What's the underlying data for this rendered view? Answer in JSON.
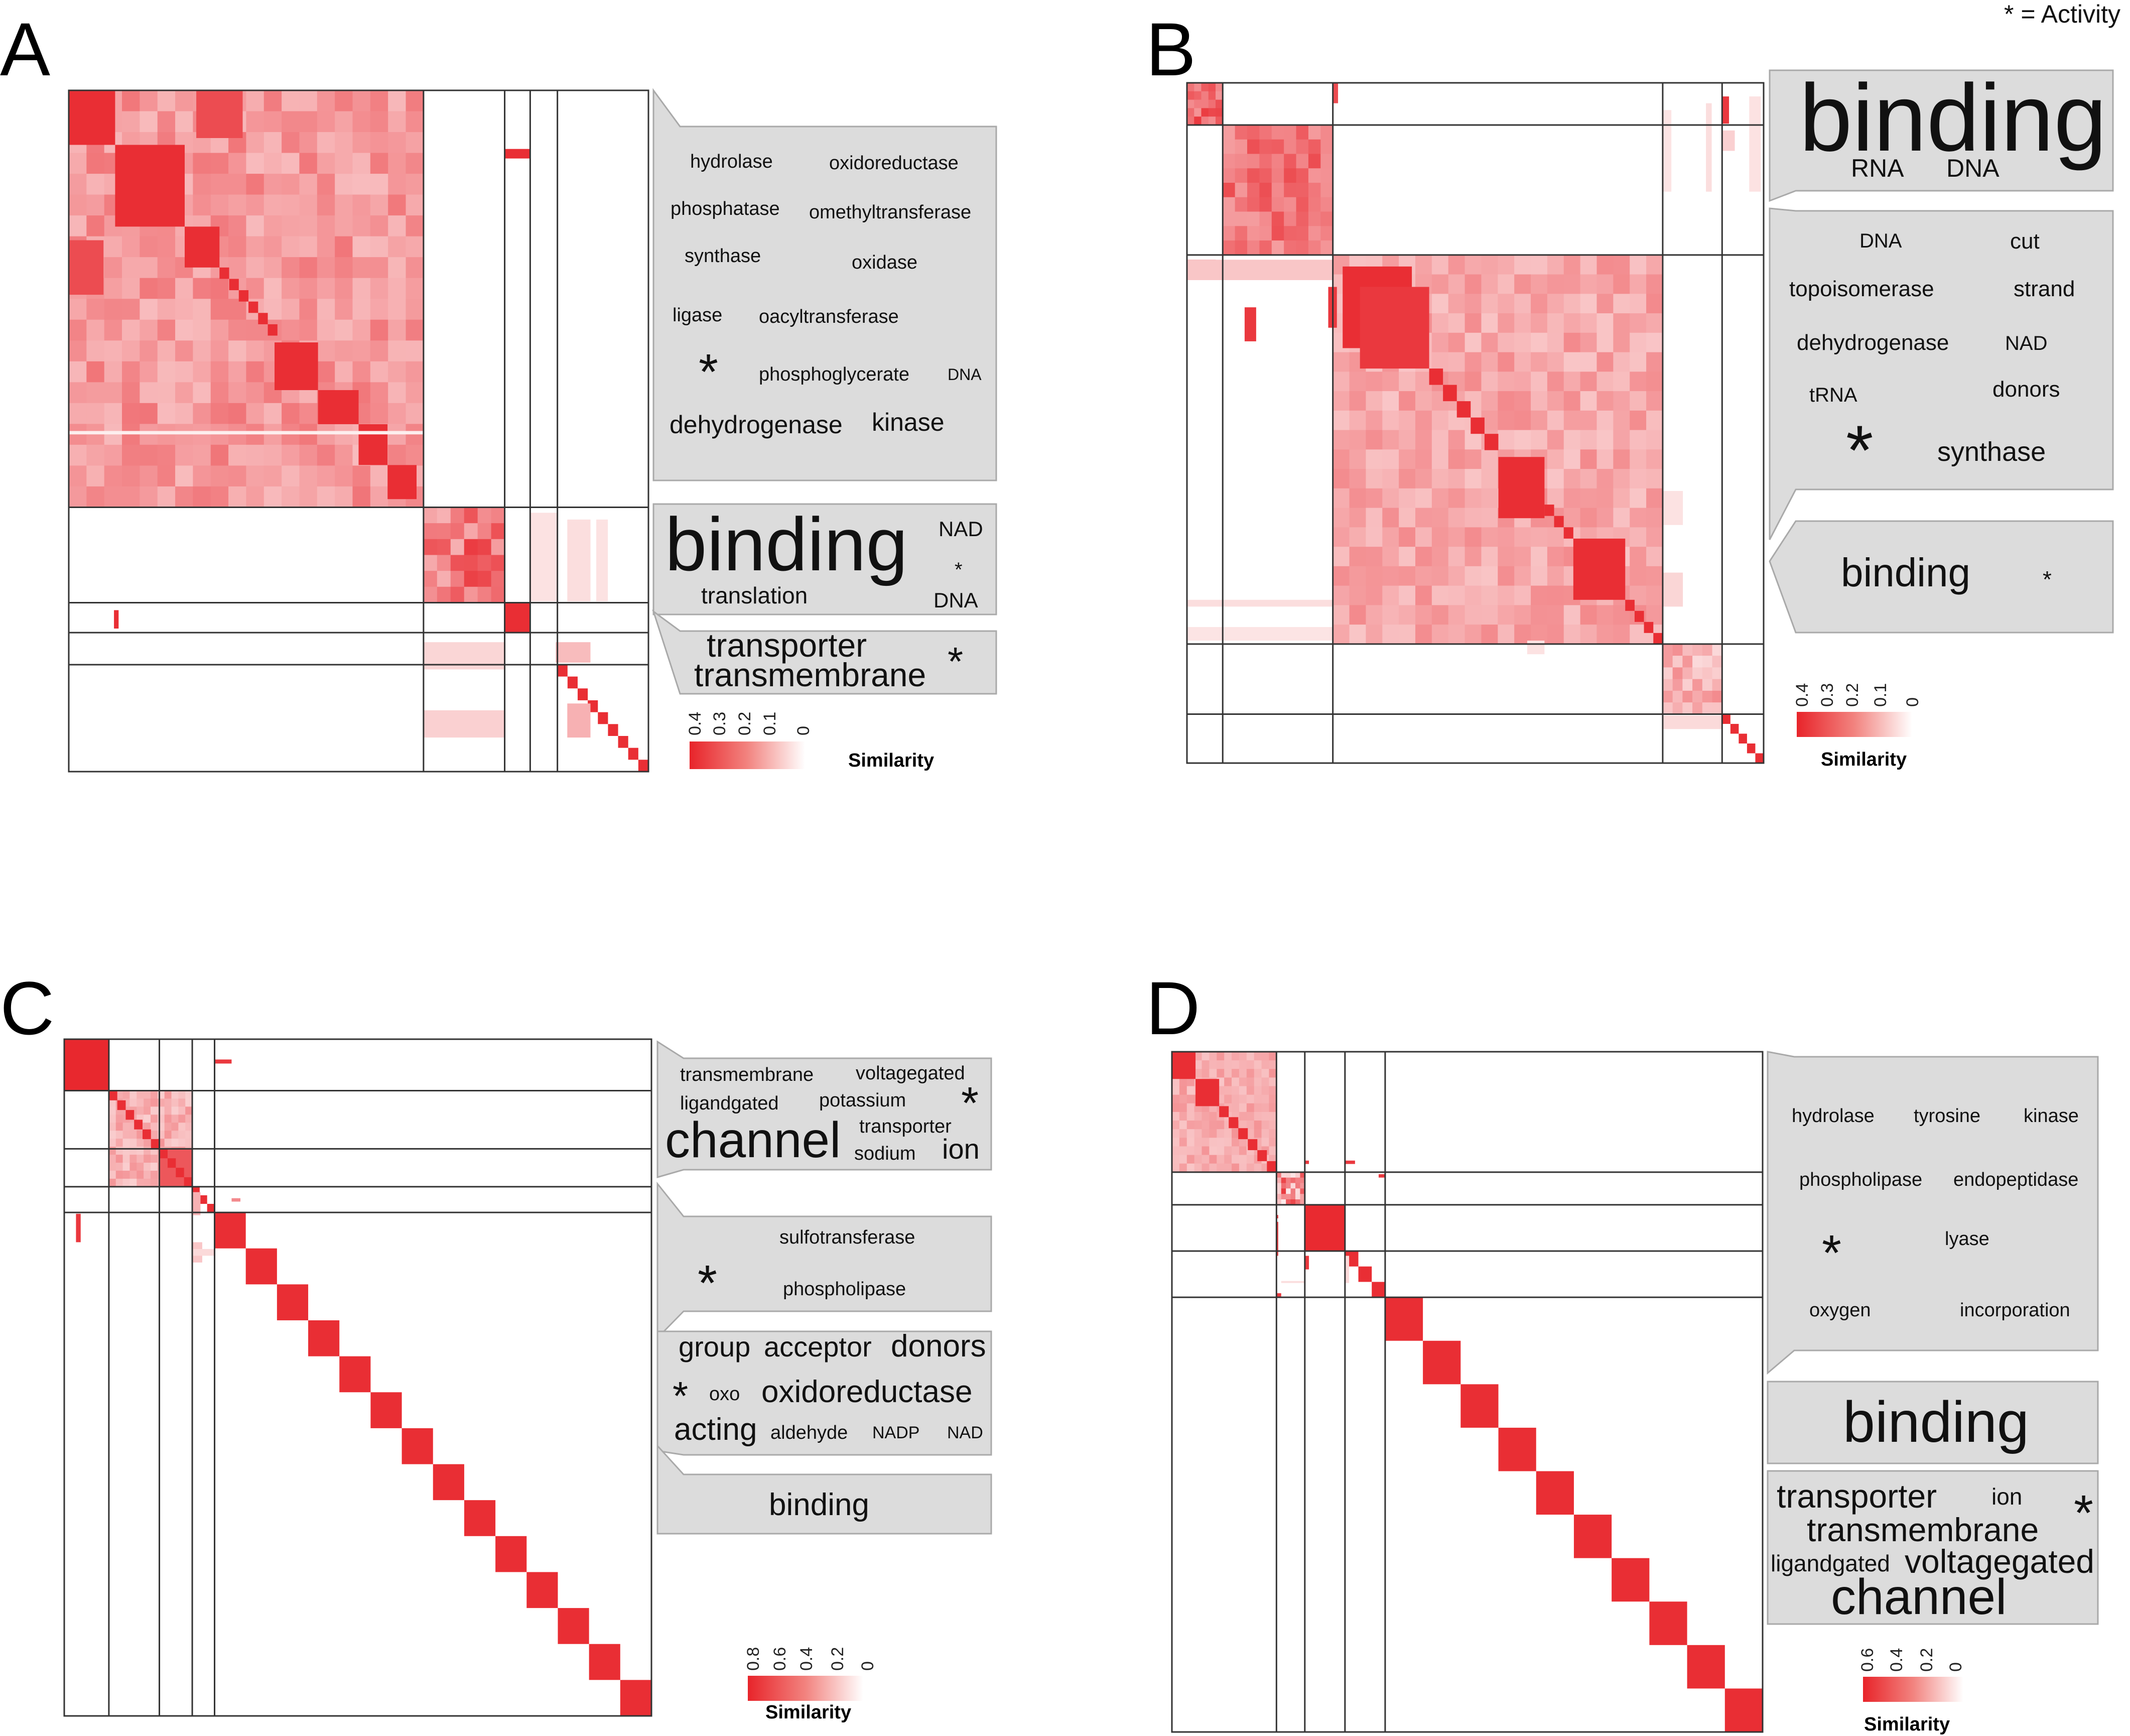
{
  "activity_note": "* = Activity",
  "legend_label": "Similarity",
  "colors": {
    "heat_high": "#e8242a",
    "heat_low": "#fdeeee",
    "callout": "#dcdcdc",
    "grid": "#333333"
  },
  "panels": {
    "A": {
      "letter": "A",
      "legend_ticks": [
        "0.4",
        "0.3",
        "0.2",
        "0.1",
        "0"
      ],
      "groups": [
        {
          "words": [
            "hydrolase",
            "oxidoreductase",
            "phosphatase",
            "omethyltransferase",
            "synthase",
            "oxidase",
            "ligase",
            "oacyltransferase",
            "*",
            "phosphoglycerate",
            "DNA",
            "dehydrogenase",
            "kinase"
          ]
        },
        {
          "words": [
            "binding",
            "NAD",
            "*",
            "translation",
            "DNA"
          ]
        },
        {
          "words": [
            "transporter",
            "*",
            "transmembrane"
          ]
        }
      ]
    },
    "B": {
      "letter": "B",
      "legend_ticks": [
        "0.4",
        "0.3",
        "0.2",
        "0.1",
        "0"
      ],
      "groups": [
        {
          "words": [
            "binding",
            "RNA",
            "DNA"
          ]
        },
        {
          "words": [
            "DNA",
            "cut",
            "topoisomerase",
            "strand",
            "dehydrogenase",
            "NAD",
            "tRNA",
            "donors",
            "*",
            "synthase"
          ]
        },
        {
          "words": [
            "binding",
            "*"
          ]
        }
      ]
    },
    "C": {
      "letter": "C",
      "legend_ticks": [
        "0.8",
        "0.6",
        "0.4",
        "0.2",
        "0"
      ],
      "groups": [
        {
          "words": [
            "transmembrane",
            "voltagegated",
            "ligandgated",
            "potassium",
            "*",
            "channel",
            "transporter",
            "sodium",
            "ion"
          ]
        },
        {
          "words": [
            "sulfotransferase",
            "*",
            "phospholipase"
          ]
        },
        {
          "words": [
            "group",
            "acceptor",
            "donors",
            "*",
            "oxo",
            "oxidoreductase",
            "acting",
            "aldehyde",
            "NADP",
            "NAD"
          ]
        },
        {
          "words": [
            "binding"
          ]
        }
      ]
    },
    "D": {
      "letter": "D",
      "legend_ticks": [
        "0.6",
        "0.4",
        "0.2",
        "0"
      ],
      "groups": [
        {
          "words": [
            "hydrolase",
            "tyrosine",
            "kinase",
            "phospholipase",
            "endopeptidase",
            "*",
            "lyase",
            "oxygen",
            "incorporation"
          ]
        },
        {
          "words": [
            "binding"
          ]
        },
        {
          "words": [
            "transporter",
            "ion",
            "*",
            "transmembrane",
            "ligandgated",
            "voltagegated",
            "channel"
          ]
        }
      ]
    }
  }
}
